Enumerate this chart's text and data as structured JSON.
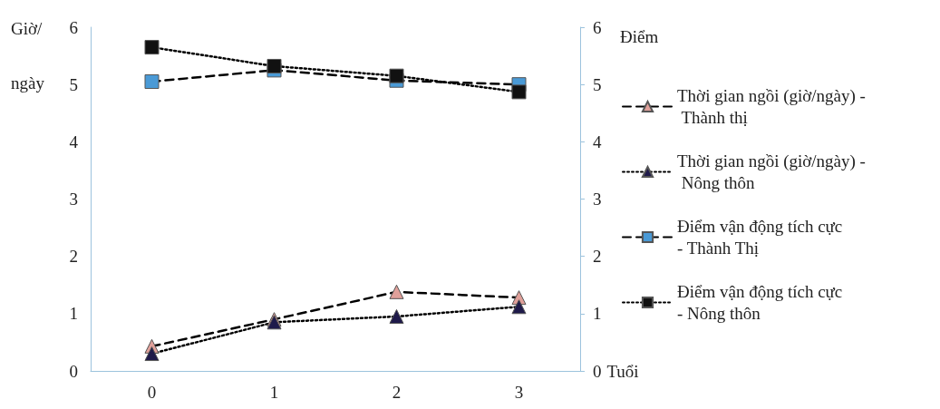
{
  "chart_data": {
    "type": "line",
    "categories": [
      "0",
      "1",
      "2",
      "3"
    ],
    "xlabel": "Tuổi",
    "ylabel": "Giờ/ ngày",
    "y2label": "Điểm",
    "ylim": [
      0,
      6
    ],
    "yticks": [
      0,
      1,
      2,
      3,
      4,
      5,
      6
    ],
    "y2lim": [
      0,
      6
    ],
    "y2ticks": [
      0,
      1,
      2,
      3,
      4,
      5,
      6
    ],
    "grid": false,
    "legend": "right",
    "series": [
      {
        "name": "Thời gian ngồi (giờ/ngày) - Thành thị",
        "color": "#e0a09a",
        "values": [
          0.43,
          0.9,
          1.38,
          1.28
        ],
        "line_style": "dashed",
        "marker": "triangle"
      },
      {
        "name": "Thời gian ngồi (giờ/ngày) - Nông thôn",
        "color": "#1f1a4a",
        "values": [
          0.3,
          0.85,
          0.95,
          1.12
        ],
        "line_style": "dotted",
        "marker": "triangle"
      },
      {
        "name": "Điểm vận động tích cực - Thành Thị",
        "color": "#4a9ad6",
        "values": [
          5.05,
          5.25,
          5.07,
          5.0
        ],
        "line_style": "dashed",
        "marker": "square",
        "axis": "y2"
      },
      {
        "name": "Điểm vận động tích cực - Nông thôn",
        "color": "#111111",
        "values": [
          5.65,
          5.32,
          5.15,
          4.87
        ],
        "line_style": "dotted",
        "marker": "square",
        "axis": "y2"
      }
    ]
  }
}
